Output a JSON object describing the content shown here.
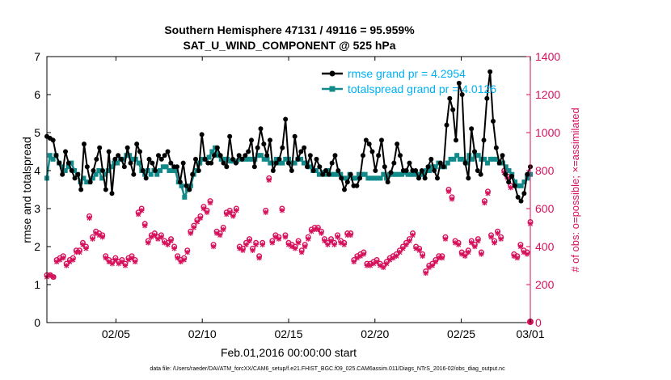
{
  "chart_data": {
    "type": "line",
    "title_line1": "Southern Hemisphere 47131 / 49116 = 95.959%",
    "title_line2": "SAT_U_WIND_COMPONENT @ 525 hPa",
    "xlabel": "Feb.01,2016 00:00:00 start",
    "ylabel_left": "rmse and totalspread",
    "ylabel_right": "# of obs: o=possible; ×=assimilated",
    "footer": "data file: /Users/raeder/DAI/ATM_forcXX/CAM6_setup/f.e21.FHIST_BGC.f09_025.CAM6assim.011/Diags_NTrS_2016-02/obs_diag_output.nc",
    "x_tick_labels": [
      "02/05",
      "02/10",
      "02/15",
      "02/20",
      "02/25",
      "03/01"
    ],
    "x_tick_days": [
      4,
      9,
      14,
      19,
      24,
      28
    ],
    "xlim_days": [
      0,
      28
    ],
    "ylim_left": [
      0,
      7
    ],
    "y_ticks_left": [
      "0",
      "1",
      "2",
      "3",
      "4",
      "5",
      "6",
      "7"
    ],
    "ylim_right": [
      0,
      1400
    ],
    "y_ticks_right": [
      "0",
      "200",
      "400",
      "600",
      "800",
      "1000",
      "1200",
      "1400"
    ],
    "grid": false,
    "legend_position": "top-right",
    "colors": {
      "rmse": "#000000",
      "spread": "#138a8a",
      "obs": "#d6115c",
      "legend_text": "#00b0f0"
    },
    "series": [
      {
        "name": "rmse grand pr = 4.2954",
        "axis": "left",
        "values": [
          4.9,
          4.85,
          4.8,
          4.4,
          4.2,
          3.9,
          4.5,
          4.2,
          4.0,
          3.8,
          3.9,
          3.5,
          4.7,
          4.1,
          3.7,
          4.0,
          4.3,
          4.6,
          4.0,
          3.5,
          4.5,
          3.4,
          4.3,
          4.4,
          4.3,
          4.1,
          4.6,
          4.2,
          3.9,
          4.7,
          4.5,
          4.0,
          3.8,
          4.3,
          4.2,
          4.0,
          4.4,
          4.3,
          4.4,
          4.5,
          4.2,
          4.1,
          4.1,
          3.7,
          4.2,
          3.6,
          3.5,
          3.9,
          4.3,
          4.0,
          4.95,
          4.3,
          4.2,
          4.2,
          4.4,
          4.6,
          4.4,
          4.2,
          4.1,
          4.9,
          4.3,
          4.2,
          4.4,
          4.3,
          4.4,
          4.5,
          4.8,
          4.1,
          4.6,
          5.1,
          4.7,
          4.4,
          4.8,
          4.0,
          4.2,
          4.3,
          4.6,
          5.35,
          4.2,
          4.0,
          4.9,
          4.3,
          4.5,
          4.6,
          4.1,
          4.4,
          4.0,
          4.3,
          4.1,
          3.9,
          4.0,
          3.9,
          4.2,
          4.4,
          4.0,
          3.8,
          3.5,
          3.7,
          3.9,
          3.6,
          3.6,
          3.8,
          4.4,
          4.8,
          4.7,
          4.5,
          4.0,
          4.4,
          4.8,
          4.1,
          3.7,
          3.95,
          4.2,
          4.7,
          4.4,
          4.0,
          4.0,
          4.2,
          4.0,
          4.0,
          3.8,
          4.0,
          3.8,
          4.1,
          4.3,
          4.0,
          3.8,
          4.2,
          4.1,
          5.2,
          5.9,
          5.6,
          4.8,
          6.3,
          6.0,
          4.2,
          3.8,
          5.1,
          4.5,
          4.0,
          3.9,
          4.8,
          5.9,
          6.6,
          5.3,
          4.6,
          4.2,
          4.4,
          3.9,
          3.7,
          3.85,
          3.6,
          3.3,
          3.2,
          3.4,
          3.9,
          4.1
        ]
      },
      {
        "name": "totalspread grand pr = 4.0126",
        "axis": "left",
        "values": [
          3.8,
          4.4,
          4.3,
          4.4,
          4.2,
          4.1,
          4.0,
          4.1,
          4.2,
          4.0,
          3.9,
          3.7,
          3.8,
          3.7,
          3.7,
          3.8,
          3.9,
          4.0,
          3.8,
          3.9,
          4.0,
          4.1,
          4.2,
          4.2,
          4.3,
          4.3,
          4.4,
          4.4,
          4.3,
          4.3,
          4.2,
          4.0,
          3.9,
          4.0,
          3.9,
          4.0,
          3.9,
          4.0,
          4.1,
          4.1,
          4.0,
          4.0,
          4.0,
          3.7,
          3.6,
          3.3,
          3.5,
          3.6,
          3.9,
          4.0,
          4.2,
          4.3,
          4.3,
          4.35,
          4.5,
          4.6,
          4.4,
          4.3,
          4.3,
          4.3,
          4.25,
          4.25,
          4.25,
          4.3,
          4.3,
          4.3,
          4.3,
          4.3,
          4.3,
          4.4,
          4.4,
          4.3,
          4.3,
          4.2,
          4.2,
          4.3,
          4.2,
          4.2,
          4.3,
          4.3,
          4.2,
          4.2,
          4.3,
          4.3,
          4.2,
          4.2,
          4.1,
          4.0,
          4.0,
          3.9,
          3.95,
          3.9,
          4.0,
          3.9,
          3.9,
          3.9,
          3.9,
          3.8,
          3.8,
          3.9,
          3.8,
          3.8,
          3.9,
          3.9,
          3.9,
          3.8,
          3.8,
          3.8,
          3.8,
          3.8,
          3.9,
          3.8,
          3.9,
          3.9,
          3.9,
          3.9,
          3.9,
          3.95,
          3.9,
          3.9,
          3.9,
          3.9,
          3.9,
          3.9,
          4.0,
          4.0,
          4.1,
          4.1,
          4.2,
          4.1,
          4.1,
          4.2,
          4.3,
          4.3,
          4.4,
          4.3,
          4.3,
          4.2,
          4.4,
          4.3,
          4.4,
          4.4,
          4.3,
          4.3,
          4.2,
          4.3,
          4.3,
          4.3,
          4.2,
          4.2,
          4.1,
          4.0,
          3.9,
          3.7,
          3.6,
          3.6,
          3.7,
          3.8,
          3.9
        ]
      },
      {
        "name": "# of obs: o=possible",
        "axis": "right",
        "values": [
          250,
          250,
          240,
          330,
          340,
          350,
          310,
          330,
          340,
          380,
          380,
          420,
          400,
          560,
          450,
          480,
          470,
          460,
          350,
          330,
          320,
          340,
          320,
          330,
          310,
          340,
          350,
          330,
          580,
          600,
          520,
          430,
          460,
          470,
          450,
          460,
          430,
          420,
          440,
          400,
          350,
          330,
          340,
          380,
          480,
          510,
          540,
          560,
          610,
          590,
          640,
          410,
          480,
          470,
          500,
          580,
          590,
          570,
          600,
          400,
          390,
          420,
          440,
          390,
          420,
          350,
          420,
          590,
          760,
          430,
          460,
          450,
          600,
          460,
          420,
          410,
          400,
          430,
          380,
          410,
          450,
          490,
          500,
          500,
          480,
          440,
          420,
          440,
          420,
          460,
          430,
          420,
          470,
          470,
          330,
          350,
          360,
          370,
          310,
          310,
          320,
          330,
          310,
          300,
          320,
          340,
          350,
          360,
          380,
          400,
          420,
          440,
          470,
          400,
          390,
          360,
          270,
          300,
          310,
          330,
          350,
          350,
          450,
          700,
          660,
          430,
          420,
          370,
          360,
          380,
          430,
          410,
          440,
          370,
          640,
          690,
          460,
          430,
          480,
          450,
          800,
          770,
          720,
          360,
          350,
          410,
          380,
          370,
          530
        ]
      },
      {
        "name": "# of obs: ×=assimilated",
        "axis": "right",
        "values": [
          240,
          250,
          240,
          320,
          330,
          340,
          300,
          320,
          330,
          370,
          370,
          410,
          390,
          550,
          440,
          470,
          460,
          450,
          340,
          320,
          310,
          330,
          310,
          320,
          300,
          330,
          340,
          320,
          570,
          590,
          510,
          420,
          450,
          460,
          440,
          450,
          420,
          410,
          430,
          390,
          340,
          320,
          330,
          370,
          470,
          500,
          530,
          550,
          600,
          580,
          630,
          400,
          470,
          460,
          490,
          570,
          580,
          560,
          590,
          390,
          380,
          410,
          430,
          380,
          410,
          340,
          410,
          580,
          750,
          420,
          450,
          440,
          590,
          450,
          410,
          400,
          390,
          420,
          370,
          400,
          440,
          480,
          490,
          490,
          470,
          430,
          410,
          430,
          410,
          450,
          420,
          410,
          460,
          460,
          320,
          340,
          350,
          360,
          300,
          300,
          310,
          320,
          300,
          290,
          310,
          330,
          340,
          350,
          370,
          390,
          410,
          430,
          460,
          390,
          380,
          350,
          260,
          290,
          300,
          320,
          340,
          340,
          440,
          690,
          650,
          420,
          410,
          360,
          350,
          370,
          420,
          400,
          430,
          360,
          630,
          680,
          450,
          420,
          470,
          440,
          790,
          760,
          710,
          350,
          340,
          400,
          370,
          360,
          520
        ]
      }
    ]
  }
}
